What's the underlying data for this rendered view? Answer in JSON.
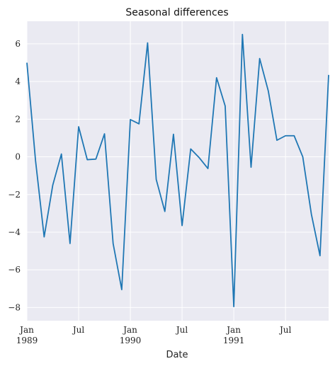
{
  "chart_data": {
    "type": "line",
    "title": "Seasonal differences",
    "xlabel": "Date",
    "ylabel": "",
    "ylim": [
      -8.7,
      7.2
    ],
    "xlim": [
      "1989-01",
      "1991-12"
    ],
    "grid": true,
    "y_ticks": [
      -8,
      -6,
      -4,
      -2,
      0,
      2,
      4,
      6
    ],
    "x_ticks": [
      {
        "date": "1989-01",
        "label": "Jan",
        "sub": "1989"
      },
      {
        "date": "1989-07",
        "label": "Jul",
        "sub": ""
      },
      {
        "date": "1990-01",
        "label": "Jan",
        "sub": "1990"
      },
      {
        "date": "1990-07",
        "label": "Jul",
        "sub": ""
      },
      {
        "date": "1991-01",
        "label": "Jan",
        "sub": "1991"
      },
      {
        "date": "1991-07",
        "label": "Jul",
        "sub": ""
      }
    ],
    "series": [
      {
        "color": "#1f77b4",
        "x": [
          "1989-01",
          "1989-02",
          "1989-03",
          "1989-04",
          "1989-05",
          "1989-06",
          "1989-07",
          "1989-08",
          "1989-09",
          "1989-10",
          "1989-11",
          "1989-12",
          "1990-01",
          "1990-02",
          "1990-03",
          "1990-04",
          "1990-05",
          "1990-06",
          "1990-07",
          "1990-08",
          "1990-09",
          "1990-10",
          "1990-11",
          "1990-12",
          "1991-01",
          "1991-02",
          "1991-03",
          "1991-04",
          "1991-05",
          "1991-06",
          "1991-07",
          "1991-08",
          "1991-09",
          "1991-10",
          "1991-11",
          "1991-12"
        ],
        "values": [
          5.0,
          -0.2,
          -4.25,
          -1.5,
          0.15,
          -4.6,
          1.6,
          -0.15,
          -0.12,
          1.22,
          -4.6,
          -7.05,
          1.98,
          1.75,
          6.05,
          -1.2,
          -2.9,
          1.2,
          -3.65,
          0.42,
          -0.05,
          -0.62,
          4.2,
          2.7,
          -7.95,
          6.5,
          -0.55,
          5.22,
          3.5,
          0.88,
          1.12,
          1.12,
          0.0,
          -3.05,
          -5.25,
          4.35
        ]
      }
    ]
  }
}
